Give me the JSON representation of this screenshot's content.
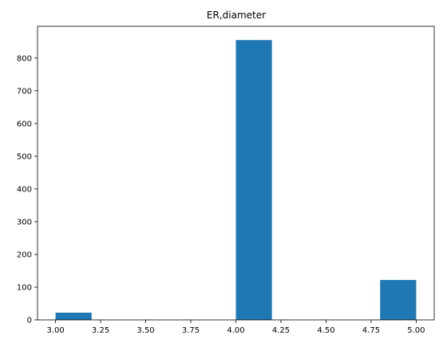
{
  "chart_data": {
    "type": "bar",
    "title": "ER,diameter",
    "xlabel": "",
    "ylabel": "",
    "xlim": [
      2.9,
      5.1
    ],
    "ylim": [
      0,
      897
    ],
    "grid": false,
    "bar_color": "#1f77b4",
    "bins": [
      {
        "x0": 3.0,
        "x1": 3.2,
        "count": 22
      },
      {
        "x0": 3.2,
        "x1": 3.4,
        "count": 0
      },
      {
        "x0": 3.4,
        "x1": 3.6,
        "count": 0
      },
      {
        "x0": 3.6,
        "x1": 3.8,
        "count": 0
      },
      {
        "x0": 3.8,
        "x1": 4.0,
        "count": 0
      },
      {
        "x0": 4.0,
        "x1": 4.2,
        "count": 855
      },
      {
        "x0": 4.2,
        "x1": 4.4,
        "count": 0
      },
      {
        "x0": 4.4,
        "x1": 4.6,
        "count": 0
      },
      {
        "x0": 4.6,
        "x1": 4.8,
        "count": 0
      },
      {
        "x0": 4.8,
        "x1": 5.0,
        "count": 122
      }
    ],
    "xticks": [
      3.0,
      3.25,
      3.5,
      3.75,
      4.0,
      4.25,
      4.5,
      4.75,
      5.0
    ],
    "xtick_labels": [
      "3.00",
      "3.25",
      "3.50",
      "3.75",
      "4.00",
      "4.25",
      "4.50",
      "4.75",
      "5.00"
    ],
    "yticks": [
      0,
      100,
      200,
      300,
      400,
      500,
      600,
      700,
      800
    ],
    "ytick_labels": [
      "0",
      "100",
      "200",
      "300",
      "400",
      "500",
      "600",
      "700",
      "800"
    ]
  }
}
